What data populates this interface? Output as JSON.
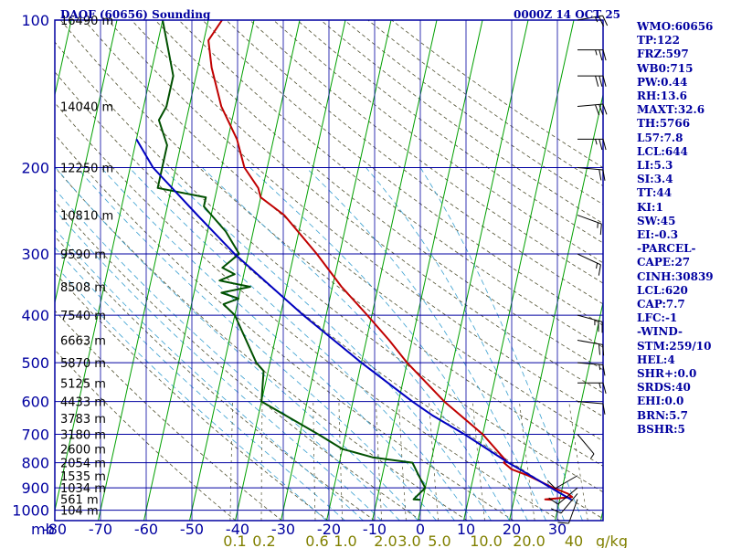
{
  "header": {
    "title": "DAOF (60656) Sounding",
    "time": "0000Z 14 OCT 25"
  },
  "indices": [
    "WMO:60656",
    "TP:122",
    "FRZ:597",
    "WB0:715",
    "PW:0.44",
    "RH:13.6",
    "MAXT:32.6",
    "TH:5766",
    "L57:7.8",
    "LCL:644",
    "LI:5.3",
    "SI:3.4",
    "TT:44",
    "KI:1",
    "SW:45",
    "EI:-0.3",
    "-PARCEL-",
    "CAPE:27",
    "CINH:30839",
    "LCL:620",
    "CAP:7.7",
    "LFC:-1",
    "-WIND-",
    "STM:259/10",
    "HEL:4",
    "SHR+:0.0",
    "SRDS:40",
    "EHI:0.0",
    "BRN:5.7",
    "BSHR:5"
  ],
  "colors": {
    "frame": "#0000a0",
    "isotherm": "#00a000",
    "dry_adiabat": "#505030",
    "moist_adiabat": "#3aa0d0",
    "temperature": "#c00000",
    "dewpoint": "#005000",
    "parcel": "#0000c0",
    "mixing_ratio_label": "#808000"
  },
  "chart_data": {
    "type": "line",
    "diagram": "skew-T log-p",
    "y_unit_label": "mb",
    "pressure_ticks": [
      100,
      200,
      300,
      400,
      500,
      600,
      700,
      800,
      900,
      1000
    ],
    "temperature_ticks": [
      -80,
      -70,
      -60,
      -50,
      -40,
      -30,
      -20,
      -10,
      0,
      10,
      20,
      30
    ],
    "xlim": [
      -80,
      40
    ],
    "ylim": [
      1050,
      100
    ],
    "y_scale": "log",
    "height_labels": [
      {
        "p": 100,
        "label": "16490 m"
      },
      {
        "p": 150,
        "label": "14040 m"
      },
      {
        "p": 200,
        "label": "12250 m"
      },
      {
        "p": 250,
        "label": "10810 m"
      },
      {
        "p": 300,
        "label": "9590 m"
      },
      {
        "p": 350,
        "label": "8508 m"
      },
      {
        "p": 400,
        "label": "7540 m"
      },
      {
        "p": 450,
        "label": "6663 m"
      },
      {
        "p": 500,
        "label": "5870 m"
      },
      {
        "p": 550,
        "label": "5125 m"
      },
      {
        "p": 600,
        "label": "4433 m"
      },
      {
        "p": 650,
        "label": "3783 m"
      },
      {
        "p": 700,
        "label": "3180 m"
      },
      {
        "p": 750,
        "label": "2600 m"
      },
      {
        "p": 800,
        "label": "2054 m"
      },
      {
        "p": 850,
        "label": "1535 m"
      },
      {
        "p": 900,
        "label": "1034 m"
      },
      {
        "p": 950,
        "label": "561 m"
      },
      {
        "p": 1000,
        "label": "104 m"
      }
    ],
    "mixing_ratio_labels": [
      {
        "value": 0.1,
        "label": "0.1"
      },
      {
        "value": 0.2,
        "label": "0.2"
      },
      {
        "value": 0.6,
        "label": "0.6"
      },
      {
        "value": 1.0,
        "label": "1.0"
      },
      {
        "value": 2.0,
        "label": "2.0"
      },
      {
        "value": 3.0,
        "label": "3.0"
      },
      {
        "value": 5.0,
        "label": "5.0"
      },
      {
        "value": 10.0,
        "label": "10.0"
      },
      {
        "value": 20.0,
        "label": "20.0"
      },
      {
        "value": 40.0,
        "label": "40"
      }
    ],
    "mixing_ratio_unit": "g/kg",
    "series": [
      {
        "name": "Temperature",
        "color": "#c00000",
        "points": [
          [
            952,
            28.4
          ],
          [
            950,
            26.8
          ],
          [
            940,
            32.6
          ],
          [
            925,
            31.5
          ],
          [
            900,
            28
          ],
          [
            850,
            22
          ],
          [
            825,
            18
          ],
          [
            800,
            16
          ],
          [
            790,
            16.2
          ],
          [
            700,
            10
          ],
          [
            600,
            0
          ],
          [
            500,
            -10
          ],
          [
            450,
            -15
          ],
          [
            400,
            -21
          ],
          [
            350,
            -28
          ],
          [
            300,
            -35
          ],
          [
            250,
            -44
          ],
          [
            230,
            -50
          ],
          [
            220,
            -51
          ],
          [
            200,
            -55
          ],
          [
            175,
            -58
          ],
          [
            150,
            -63
          ],
          [
            125,
            -67
          ],
          [
            110,
            -69
          ],
          [
            100,
            -67
          ]
        ]
      },
      {
        "name": "Dewpoint",
        "color": "#005000",
        "points": [
          [
            952,
            -0.5
          ],
          [
            950,
            -2
          ],
          [
            900,
            0
          ],
          [
            850,
            -2
          ],
          [
            800,
            -4
          ],
          [
            780,
            -13
          ],
          [
            750,
            -20
          ],
          [
            700,
            -26
          ],
          [
            600,
            -40
          ],
          [
            520,
            -41
          ],
          [
            500,
            -43
          ],
          [
            400,
            -50
          ],
          [
            380,
            -53
          ],
          [
            370,
            -50
          ],
          [
            360,
            -54
          ],
          [
            350,
            -48
          ],
          [
            340,
            -55
          ],
          [
            330,
            -52
          ],
          [
            320,
            -55
          ],
          [
            300,
            -52
          ],
          [
            270,
            -56
          ],
          [
            240,
            -62
          ],
          [
            230,
            -62
          ],
          [
            220,
            -73
          ],
          [
            180,
            -73
          ],
          [
            160,
            -76
          ],
          [
            150,
            -75
          ],
          [
            130,
            -75
          ],
          [
            100,
            -80
          ]
        ]
      },
      {
        "name": "Parcel",
        "color": "#0000c0",
        "points": [
          [
            952,
            32.6
          ],
          [
            900,
            27.5
          ],
          [
            850,
            22.5
          ],
          [
            800,
            17
          ],
          [
            700,
            6
          ],
          [
            640,
            -2
          ],
          [
            600,
            -7
          ],
          [
            500,
            -20
          ],
          [
            400,
            -35
          ],
          [
            300,
            -53
          ],
          [
            250,
            -63
          ],
          [
            200,
            -75
          ],
          [
            175,
            -80
          ]
        ]
      }
    ],
    "winds": [
      {
        "p": 100,
        "dir": 80,
        "spd": 25
      },
      {
        "p": 115,
        "dir": 90,
        "spd": 25
      },
      {
        "p": 130,
        "dir": 90,
        "spd": 30
      },
      {
        "p": 150,
        "dir": 85,
        "spd": 30
      },
      {
        "p": 175,
        "dir": 90,
        "spd": 25
      },
      {
        "p": 200,
        "dir": 95,
        "spd": 20
      },
      {
        "p": 250,
        "dir": 110,
        "spd": 15
      },
      {
        "p": 300,
        "dir": 115,
        "spd": 15
      },
      {
        "p": 400,
        "dir": 105,
        "spd": 25
      },
      {
        "p": 450,
        "dir": 100,
        "spd": 20
      },
      {
        "p": 500,
        "dir": 95,
        "spd": 15
      },
      {
        "p": 550,
        "dir": 90,
        "spd": 15
      },
      {
        "p": 600,
        "dir": 95,
        "spd": 10
      },
      {
        "p": 700,
        "dir": 140,
        "spd": 5
      },
      {
        "p": 850,
        "dir": 240,
        "spd": 10
      },
      {
        "p": 900,
        "dir": 230,
        "spd": 10
      },
      {
        "p": 925,
        "dir": 220,
        "spd": 10
      },
      {
        "p": 950,
        "dir": 200,
        "spd": 10
      }
    ]
  }
}
